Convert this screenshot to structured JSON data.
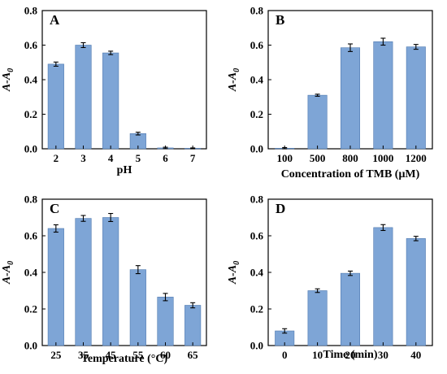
{
  "colors": {
    "bar_fill": "#7ea5d6",
    "bar_edge": "#4f79b0"
  },
  "chart_data": [
    {
      "panel": "A",
      "type": "bar",
      "categories": [
        "2",
        "3",
        "4",
        "5",
        "6",
        "7"
      ],
      "values": [
        0.49,
        0.6,
        0.555,
        0.088,
        0.005,
        0.002
      ],
      "errors": [
        0.012,
        0.014,
        0.01,
        0.008,
        0.004,
        0.003
      ],
      "xlabel": "pH",
      "ylabel": "A-A",
      "ylabel_sub": "0",
      "ylim": [
        0,
        0.8
      ],
      "yticks": [
        "0.0",
        "0.2",
        "0.4",
        "0.6",
        "0.8"
      ]
    },
    {
      "panel": "B",
      "type": "bar",
      "categories": [
        "100",
        "500",
        "800",
        "1000",
        "1200"
      ],
      "values": [
        0.003,
        0.31,
        0.585,
        0.62,
        0.59
      ],
      "errors": [
        0.004,
        0.006,
        0.022,
        0.02,
        0.014
      ],
      "xlabel": "Concentration of TMB (μM)",
      "ylabel": "A-A",
      "ylabel_sub": "0",
      "ylim": [
        0,
        0.8
      ],
      "yticks": [
        "0.0",
        "0.2",
        "0.4",
        "0.6",
        "0.8"
      ]
    },
    {
      "panel": "C",
      "type": "bar",
      "categories": [
        "25",
        "35",
        "45",
        "55",
        "60",
        "65"
      ],
      "values": [
        0.64,
        0.695,
        0.7,
        0.415,
        0.265,
        0.22
      ],
      "errors": [
        0.02,
        0.016,
        0.022,
        0.022,
        0.02,
        0.014
      ],
      "xlabel": "Temperature (°C)",
      "ylabel": "A-A",
      "ylabel_sub": "0",
      "ylim": [
        0,
        0.8
      ],
      "yticks": [
        "0.0",
        "0.2",
        "0.4",
        "0.6",
        "0.8"
      ]
    },
    {
      "panel": "D",
      "type": "bar",
      "categories": [
        "0",
        "10",
        "20",
        "30",
        "40"
      ],
      "values": [
        0.08,
        0.3,
        0.395,
        0.645,
        0.585
      ],
      "errors": [
        0.012,
        0.01,
        0.012,
        0.016,
        0.012
      ],
      "xlabel": "Time (min)",
      "ylabel": "A-A",
      "ylabel_sub": "0",
      "ylim": [
        0,
        0.8
      ],
      "yticks": [
        "0.0",
        "0.2",
        "0.4",
        "0.6",
        "0.8"
      ]
    }
  ]
}
